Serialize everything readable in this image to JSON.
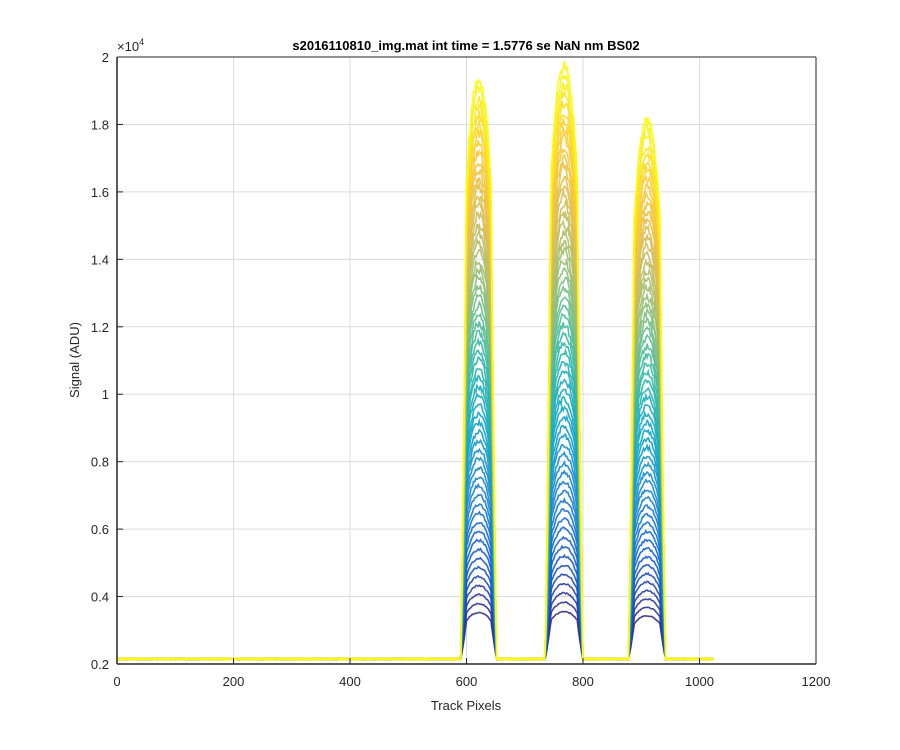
{
  "chart_data": {
    "type": "line",
    "title": "s2016110810_img.mat int time = 1.5776 se  NaN nm BS02",
    "xlabel": "Track Pixels",
    "ylabel": "Signal (ADU)",
    "xlim": [
      0,
      1200
    ],
    "ylim": [
      2000,
      20000
    ],
    "y_exponent_label": "×10",
    "y_exponent_power": "4",
    "xticks": [
      0,
      200,
      400,
      600,
      800,
      1000,
      1200
    ],
    "xtick_labels": [
      "0",
      "200",
      "400",
      "600",
      "800",
      "1000",
      "1200"
    ],
    "yticks": [
      2000,
      4000,
      6000,
      8000,
      10000,
      12000,
      14000,
      16000,
      18000,
      20000
    ],
    "ytick_labels": [
      "0.2",
      "0.4",
      "0.6",
      "0.8",
      "1",
      "1.2",
      "1.4",
      "1.6",
      "1.8",
      "2"
    ],
    "grid": true,
    "baseline": {
      "x_range": [
        0,
        1024
      ],
      "value": 2150
    },
    "peaks": [
      {
        "x_start": 590,
        "x_end": 652,
        "max": 19500
      },
      {
        "x_start": 735,
        "x_end": 800,
        "max": 19900
      },
      {
        "x_start": 878,
        "x_end": 942,
        "max": 18300
      }
    ],
    "series_count": 60,
    "colormap": [
      "#352a87",
      "#0f5cdd",
      "#1481d6",
      "#06a4ca",
      "#2eb7a4",
      "#87bf77",
      "#d1bb59",
      "#fec832",
      "#f9fb0e"
    ]
  }
}
